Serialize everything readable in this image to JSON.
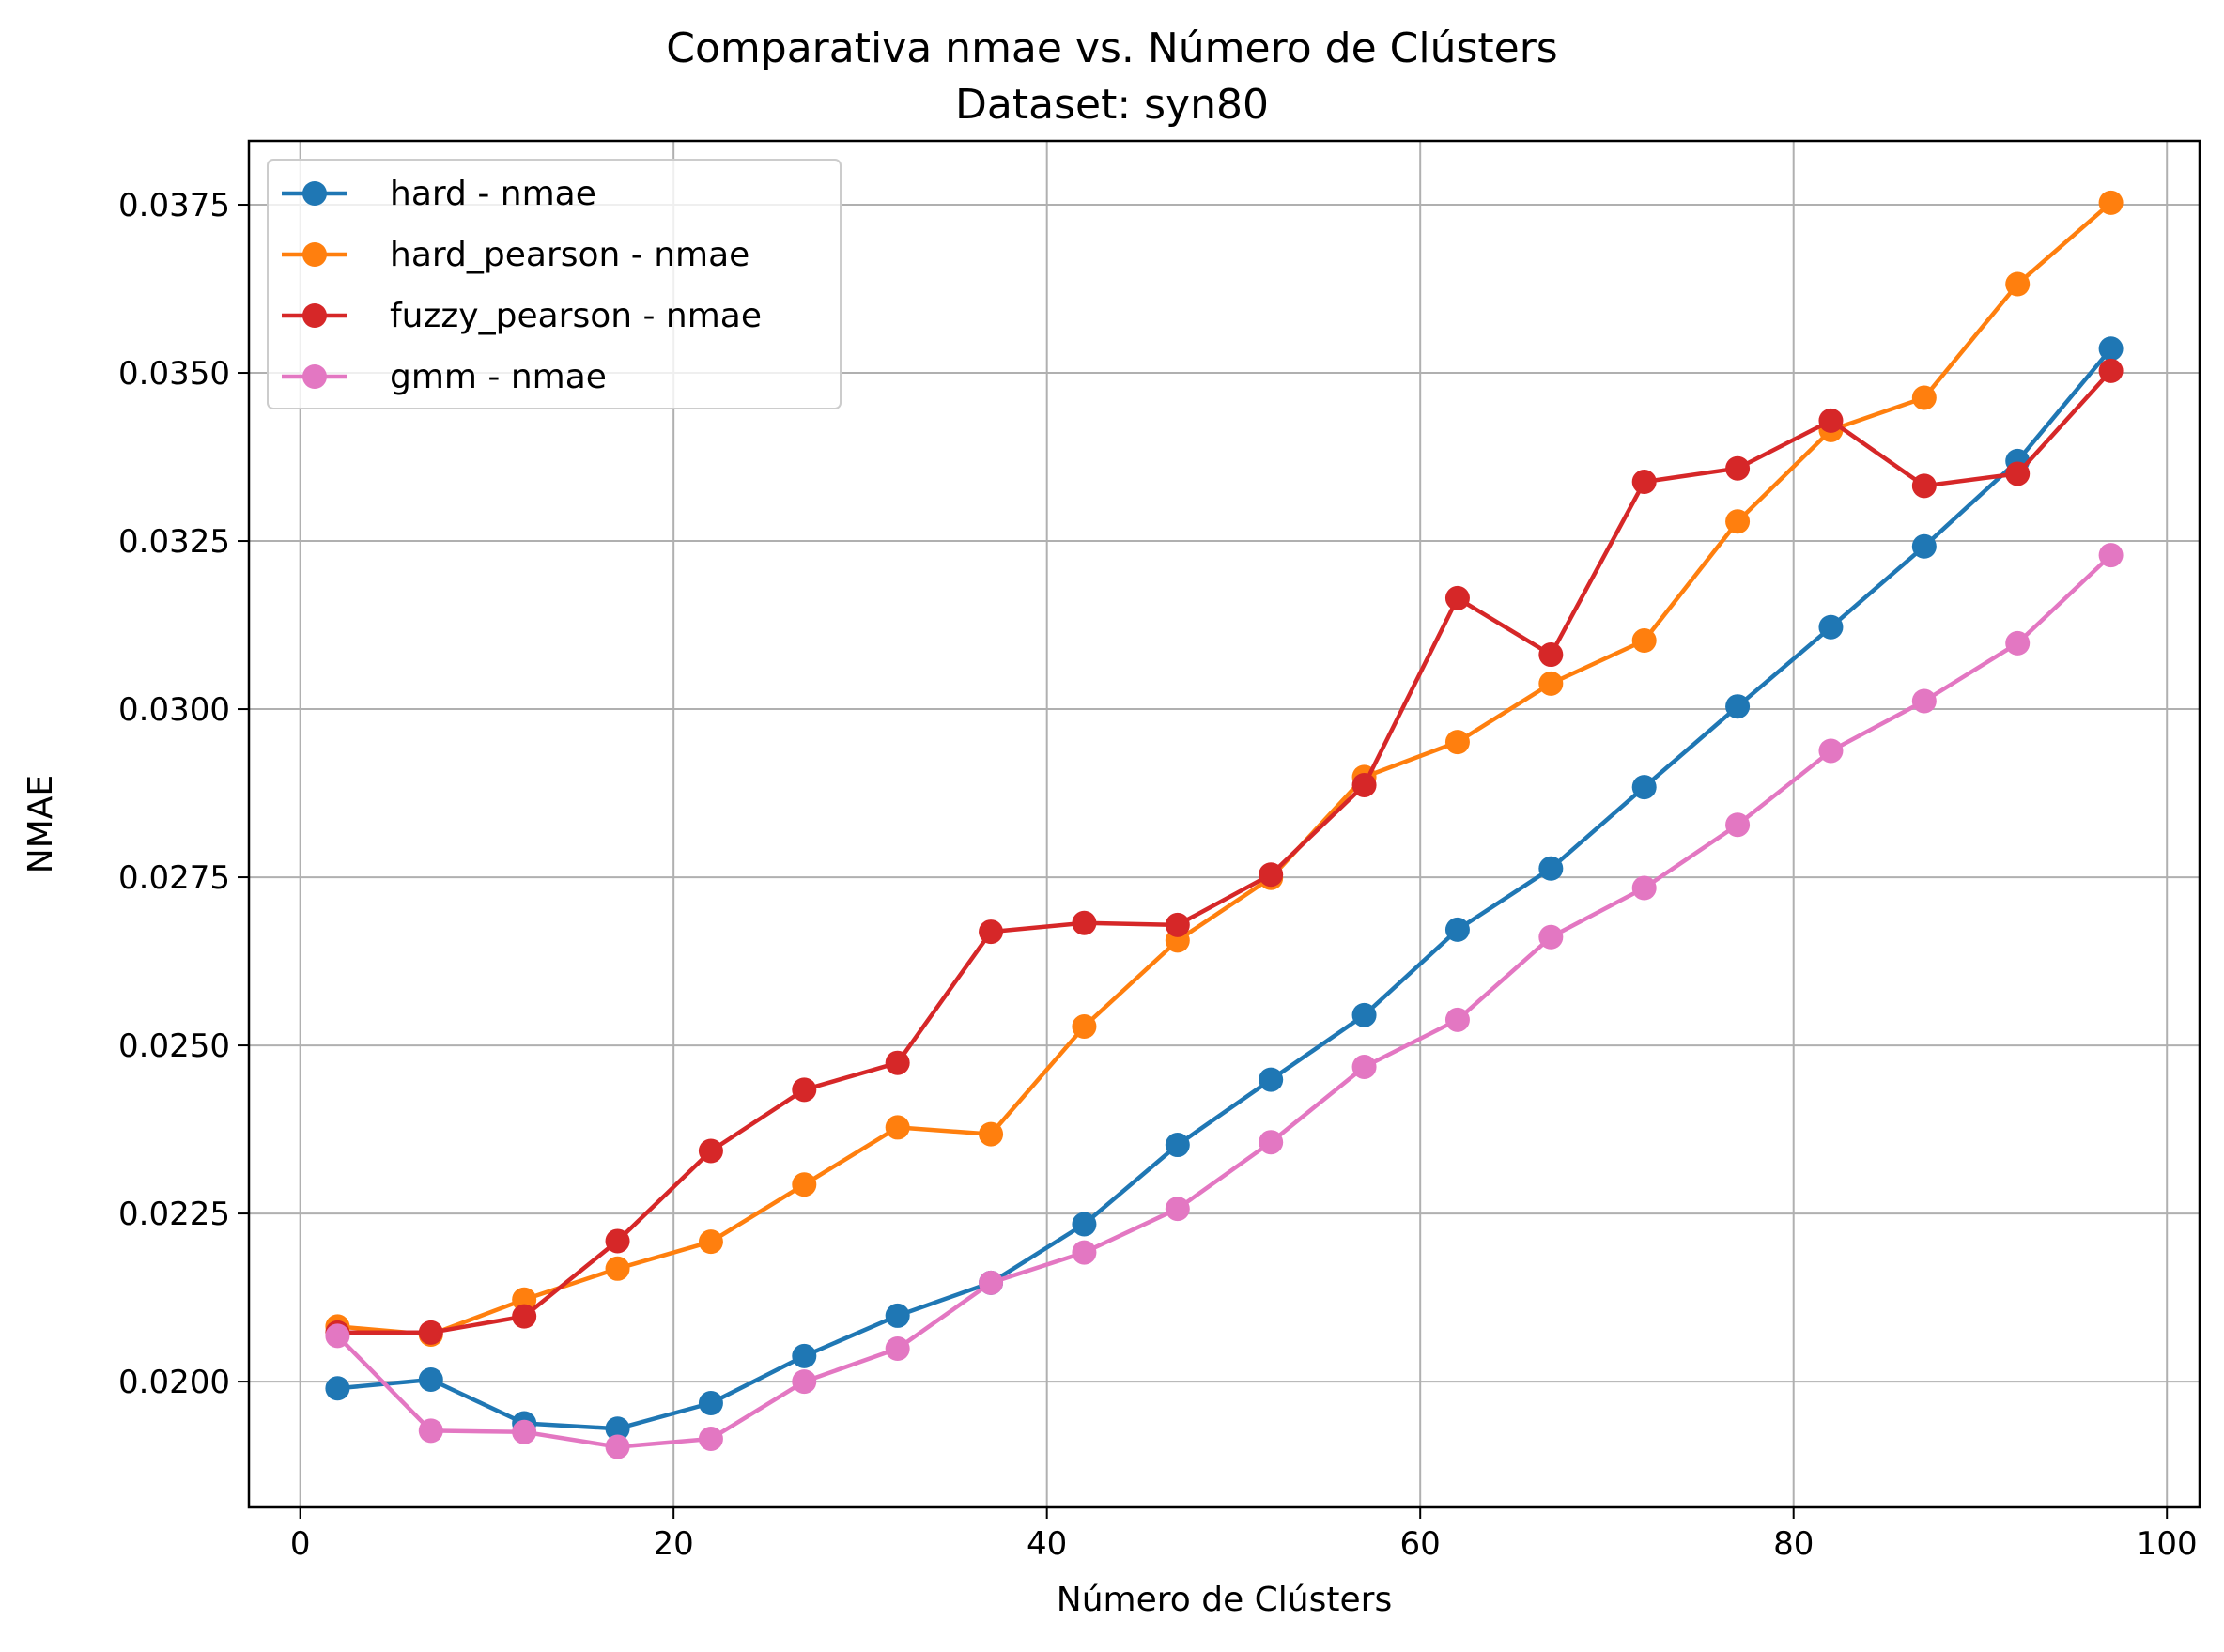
{
  "chart_data": {
    "type": "line",
    "title": "Comparativa nmae vs. Número de Clústers",
    "subtitle": "Dataset: syn80",
    "xlabel": "Número de Clústers",
    "ylabel": "NMAE",
    "xlim": [
      -2.75,
      101.75
    ],
    "ylim": [
      0.01813,
      0.03845
    ],
    "xticks": [
      0,
      20,
      40,
      60,
      80,
      100
    ],
    "xtick_labels": [
      "0",
      "20",
      "40",
      "60",
      "80",
      "100"
    ],
    "yticks": [
      0.02,
      0.0225,
      0.025,
      0.0275,
      0.03,
      0.0325,
      0.035,
      0.0375
    ],
    "ytick_labels": [
      "0.0200",
      "0.0225",
      "0.0250",
      "0.0275",
      "0.0300",
      "0.0325",
      "0.0350",
      "0.0375"
    ],
    "grid": true,
    "legend_position": "top-left",
    "x": [
      2,
      7,
      12,
      17,
      22,
      27,
      32,
      37,
      42,
      47,
      52,
      57,
      62,
      67,
      72,
      77,
      82,
      87,
      92,
      97
    ],
    "series": [
      {
        "name": "hard - nmae",
        "color": "#1f77b4",
        "values": [
          0.0199,
          0.02003,
          0.01938,
          0.0193,
          0.01968,
          0.02038,
          0.02098,
          0.02147,
          0.02234,
          0.02352,
          0.02449,
          0.02545,
          0.02672,
          0.02763,
          0.02884,
          0.03004,
          0.03122,
          0.03242,
          0.03369,
          0.03536
        ]
      },
      {
        "name": "hard_pearson - nmae",
        "color": "#ff7f0e",
        "values": [
          0.02082,
          0.0207,
          0.02122,
          0.02168,
          0.02208,
          0.02293,
          0.02378,
          0.02368,
          0.02528,
          0.02656,
          0.02749,
          0.02899,
          0.02951,
          0.03038,
          0.03102,
          0.03279,
          0.03415,
          0.03463,
          0.03632,
          0.03753
        ]
      },
      {
        "name": "fuzzy_pearson - nmae",
        "color": "#d62728",
        "values": [
          0.02073,
          0.02073,
          0.02097,
          0.02209,
          0.02343,
          0.02434,
          0.02474,
          0.02669,
          0.02682,
          0.02679,
          0.02754,
          0.02887,
          0.03165,
          0.03081,
          0.03338,
          0.03358,
          0.03429,
          0.03332,
          0.0335,
          0.03503
        ]
      },
      {
        "name": "gmm - nmae",
        "color": "#e377c2",
        "values": [
          0.02068,
          0.01927,
          0.01925,
          0.01903,
          0.01915,
          0.02,
          0.02049,
          0.02147,
          0.02192,
          0.02257,
          0.02356,
          0.02468,
          0.02538,
          0.02661,
          0.02734,
          0.02828,
          0.02938,
          0.03012,
          0.03098,
          0.03229
        ]
      }
    ]
  }
}
